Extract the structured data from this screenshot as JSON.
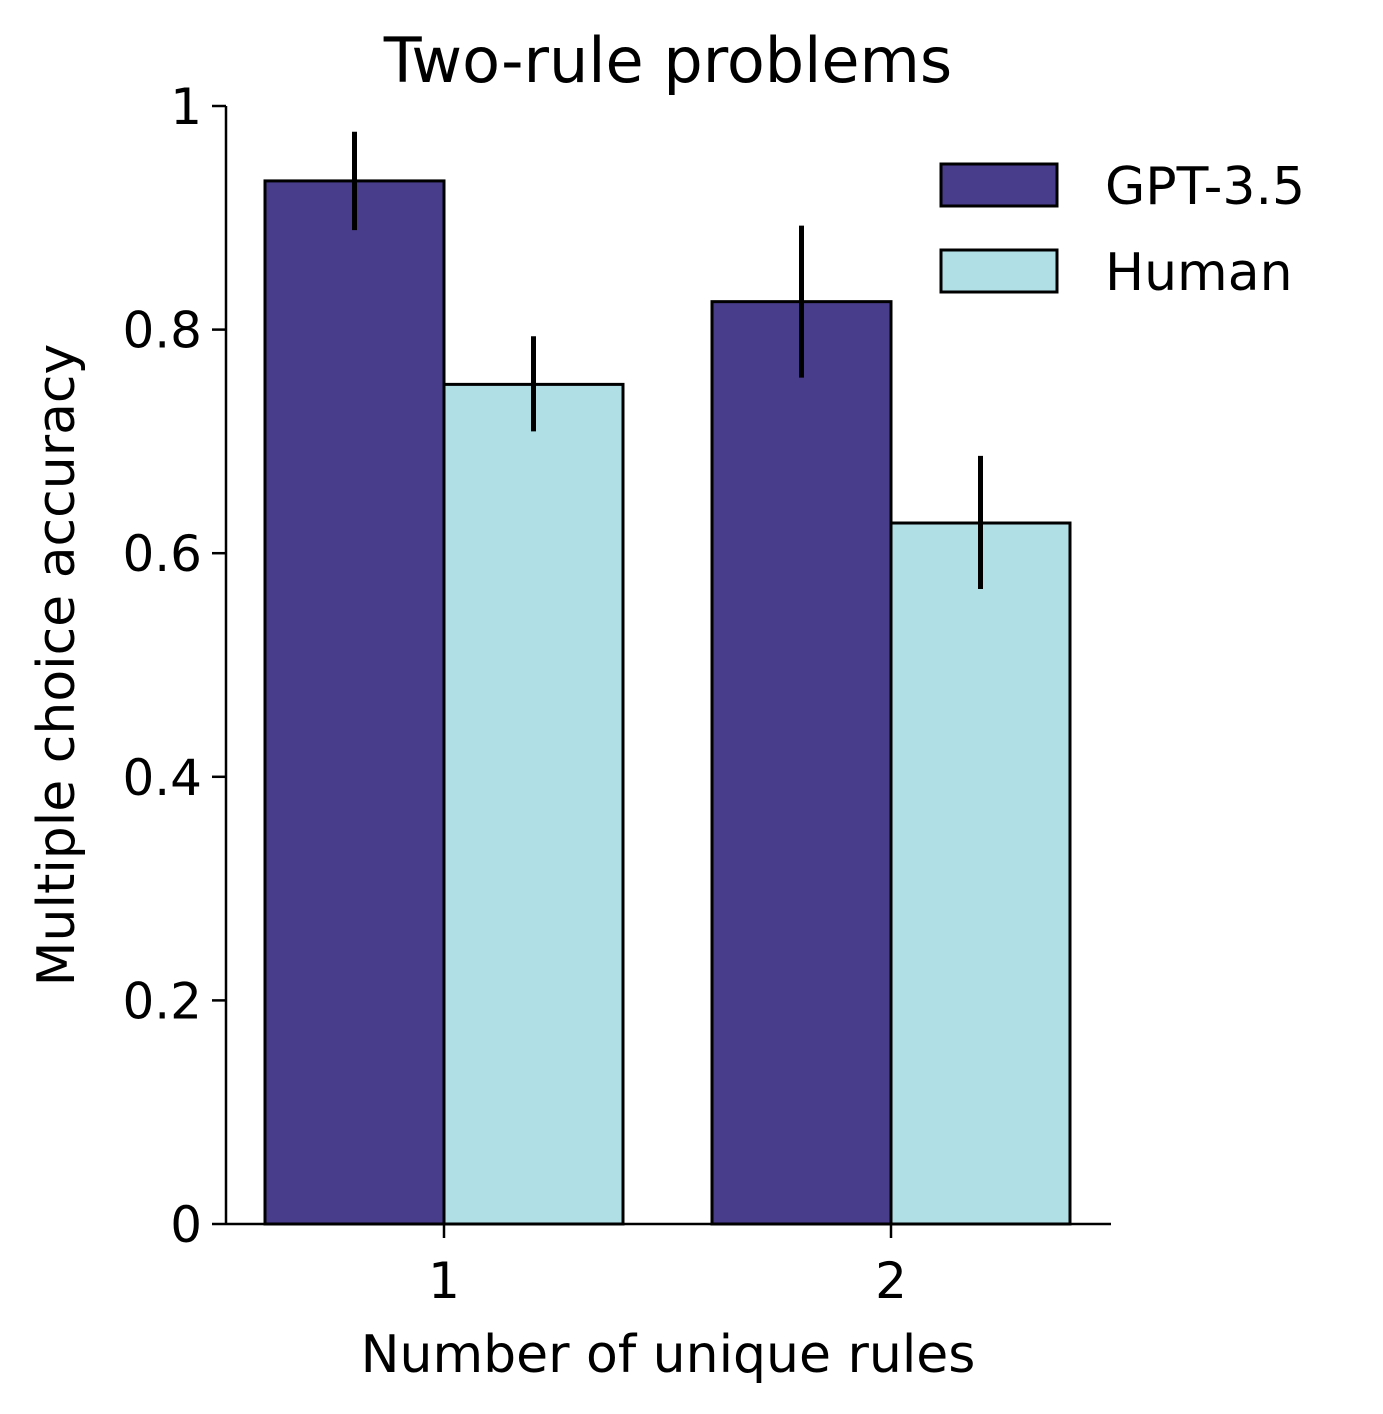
{
  "chart_data": {
    "type": "bar",
    "title": "Two-rule problems",
    "xlabel": "Number of unique rules",
    "ylabel": "Multiple choice accuracy",
    "categories": [
      "1",
      "2"
    ],
    "ylim": [
      0,
      1
    ],
    "yticks": [
      {
        "value": 0,
        "label": "0"
      },
      {
        "value": 0.2,
        "label": "0.2"
      },
      {
        "value": 0.4,
        "label": "0.4"
      },
      {
        "value": 0.6,
        "label": "0.6"
      },
      {
        "value": 0.8,
        "label": "0.8"
      },
      {
        "value": 1,
        "label": "1"
      }
    ],
    "series": [
      {
        "name": "GPT-3.5",
        "color": "#483D8B",
        "values": [
          0.933,
          0.825
        ],
        "err_low": [
          0.889,
          0.757
        ],
        "err_high": [
          0.977,
          0.893
        ]
      },
      {
        "name": "Human",
        "color": "#B0E0E6",
        "values": [
          0.751,
          0.627
        ],
        "err_low": [
          0.709,
          0.568
        ],
        "err_high": [
          0.794,
          0.687
        ]
      }
    ],
    "legend": "top-right",
    "grid": false
  }
}
